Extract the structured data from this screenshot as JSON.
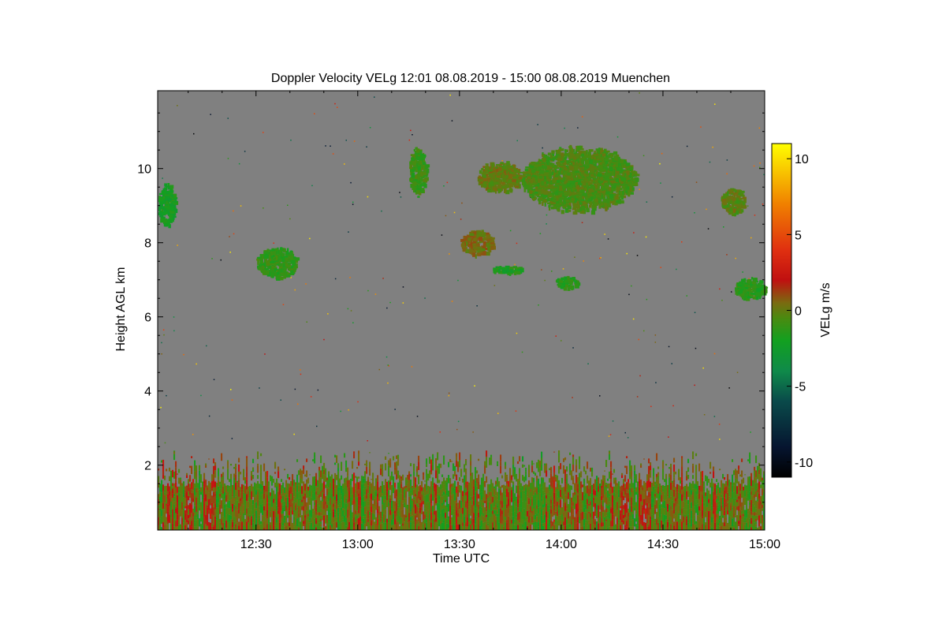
{
  "chart_data": {
    "type": "heatmap",
    "title": "Doppler Velocity VELg   12:01 08.08.2019 - 15:00 08.08.2019 Muenchen",
    "xlabel": "Time UTC",
    "ylabel": "Height AGL km",
    "colorbar_label": "VELg m/s",
    "x_range_minutes_utc": [
      721,
      900
    ],
    "x_ticks": [
      {
        "label": "12:30",
        "value": 750
      },
      {
        "label": "13:00",
        "value": 780
      },
      {
        "label": "13:30",
        "value": 810
      },
      {
        "label": "14:00",
        "value": 840
      },
      {
        "label": "14:30",
        "value": 870
      },
      {
        "label": "15:00",
        "value": 900
      }
    ],
    "ylim": [
      0.25,
      12.1
    ],
    "y_ticks": [
      {
        "label": "2",
        "value": 2
      },
      {
        "label": "4",
        "value": 4
      },
      {
        "label": "6",
        "value": 6
      },
      {
        "label": "8",
        "value": 8
      },
      {
        "label": "10",
        "value": 10
      }
    ],
    "colorbar_range": [
      -11,
      11
    ],
    "colorbar_ticks": [
      {
        "label": "10",
        "value": 10
      },
      {
        "label": "5",
        "value": 5
      },
      {
        "label": "0",
        "value": 0
      },
      {
        "label": "-5",
        "value": -5
      },
      {
        "label": "-10",
        "value": -10
      }
    ],
    "colormap_stops": [
      {
        "value": -11,
        "color": "#000000"
      },
      {
        "value": -9,
        "color": "#061530"
      },
      {
        "value": -6,
        "color": "#0a4a4a"
      },
      {
        "value": -4,
        "color": "#0f8a4a"
      },
      {
        "value": -2,
        "color": "#12a020"
      },
      {
        "value": -0.5,
        "color": "#4a8a10"
      },
      {
        "value": 0.5,
        "color": "#7a6a10"
      },
      {
        "value": 2,
        "color": "#c01010"
      },
      {
        "value": 4,
        "color": "#e03010"
      },
      {
        "value": 7,
        "color": "#f08000"
      },
      {
        "value": 11,
        "color": "#ffff00"
      }
    ],
    "background_color": "#808080",
    "cloud_regions": [
      {
        "t0": 721,
        "t1": 726,
        "h0": 8.45,
        "h1": 9.6,
        "velocity": -2.0
      },
      {
        "t0": 750,
        "t1": 762,
        "h0": 7.1,
        "h1": 7.9,
        "velocity": -1.2
      },
      {
        "t0": 795,
        "t1": 800,
        "h0": 9.3,
        "h1": 10.6,
        "velocity": -1.0
      },
      {
        "t0": 815,
        "t1": 828,
        "h0": 9.4,
        "h1": 10.2,
        "velocity": 0.0
      },
      {
        "t0": 828,
        "t1": 862,
        "h0": 8.9,
        "h1": 10.6,
        "velocity": -0.6
      },
      {
        "t0": 810,
        "t1": 820,
        "h0": 7.7,
        "h1": 8.35,
        "velocity": 0.4
      },
      {
        "t0": 819,
        "t1": 829,
        "h0": 7.2,
        "h1": 7.4,
        "velocity": -1.8
      },
      {
        "t0": 838,
        "t1": 845,
        "h0": 6.8,
        "h1": 7.1,
        "velocity": -1.5
      },
      {
        "t0": 887,
        "t1": 894,
        "h0": 8.8,
        "h1": 9.5,
        "velocity": -0.2
      },
      {
        "t0": 891,
        "t1": 900,
        "h0": 6.5,
        "h1": 7.1,
        "velocity": -1.5
      }
    ],
    "boundary_layer": {
      "t0": 721,
      "t1": 900,
      "h0": 0.25,
      "h1": 2.5,
      "velocity_range": [
        -3,
        3
      ]
    }
  }
}
